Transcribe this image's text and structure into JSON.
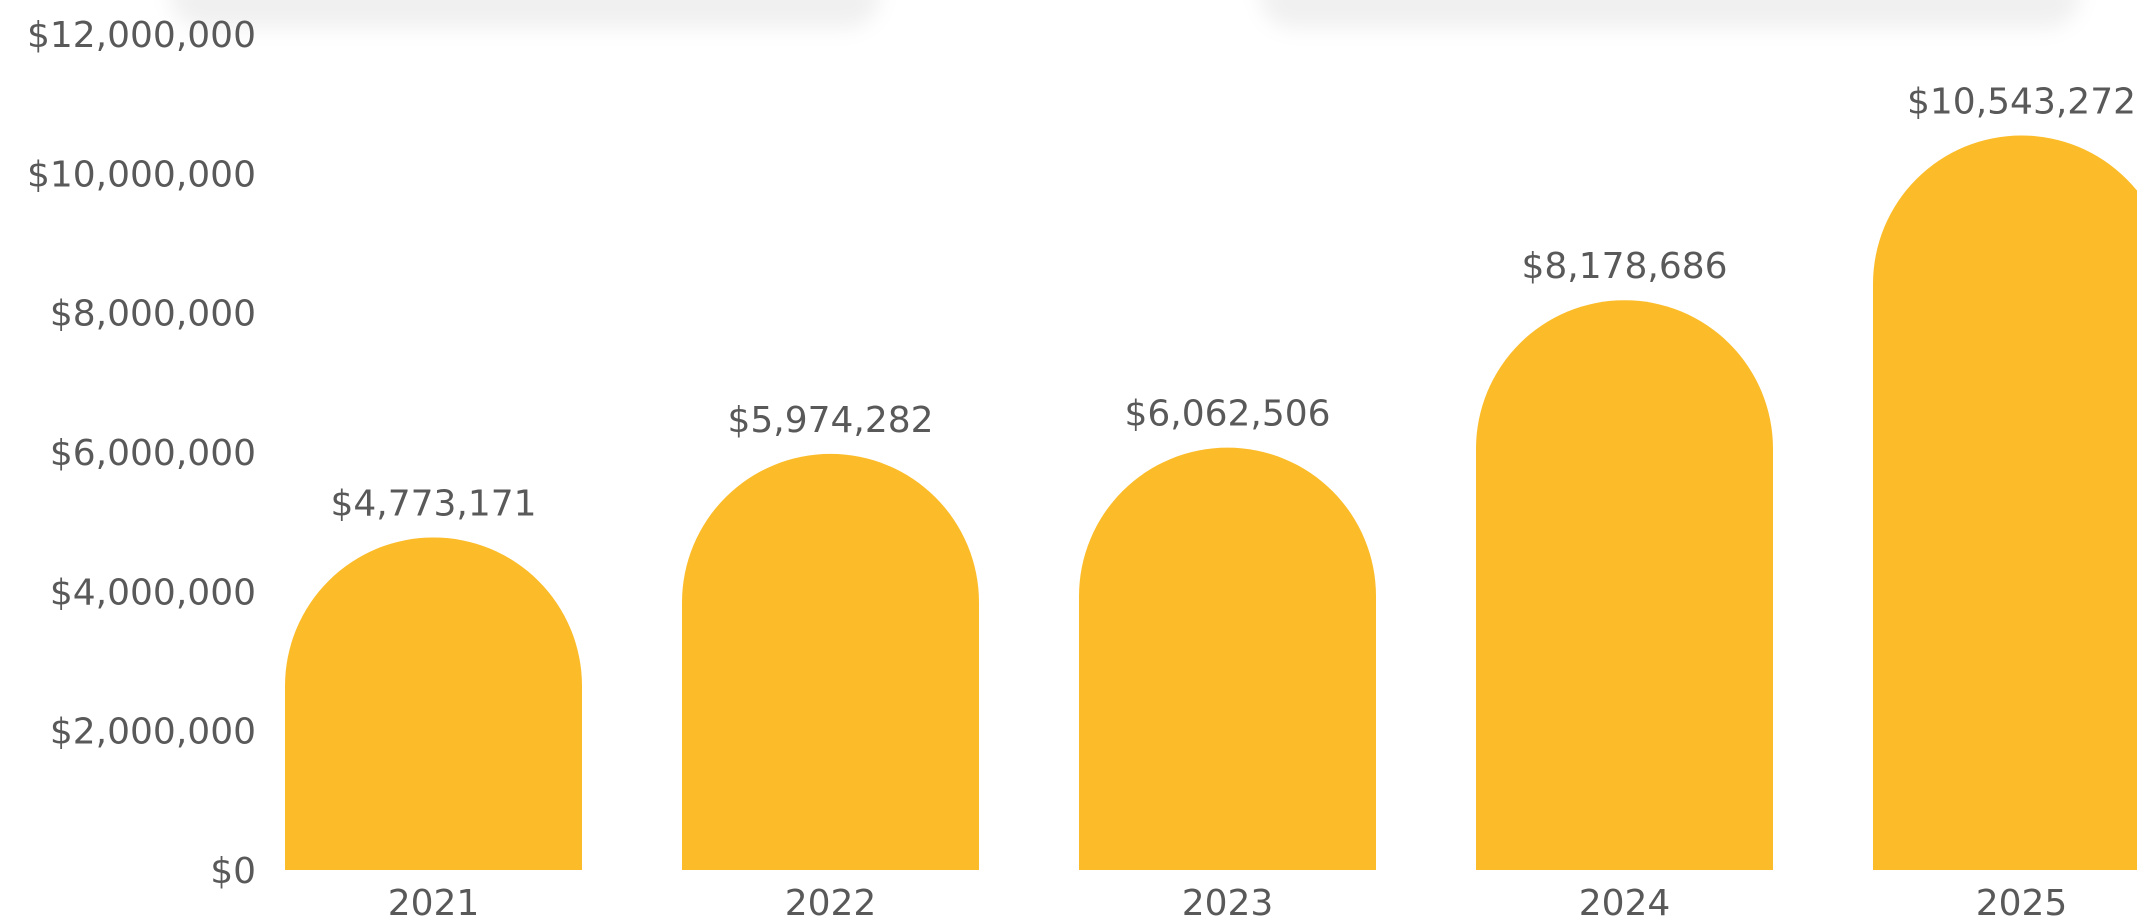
{
  "chart_data": {
    "type": "bar",
    "categories": [
      "2021",
      "2022",
      "2023",
      "2024",
      "2025"
    ],
    "values": [
      4773171,
      5974282,
      6062506,
      8178686,
      10543272
    ],
    "value_labels": [
      "$4,773,171",
      "$5,974,282",
      "$6,062,506",
      "$8,178,686",
      "$10,543,272"
    ],
    "title": "",
    "xlabel": "",
    "ylabel": "",
    "ylim": [
      0,
      12000000
    ],
    "yticks": [
      0,
      2000000,
      4000000,
      6000000,
      8000000,
      10000000,
      12000000
    ],
    "ytick_labels": [
      "$0",
      "$2,000,000",
      "$4,000,000",
      "$6,000,000",
      "$8,000,000",
      "$10,000,000",
      "$12,000,000"
    ],
    "grid": false,
    "legend": "none",
    "bar_color": "#FCBC29",
    "text_color": "#595959"
  }
}
